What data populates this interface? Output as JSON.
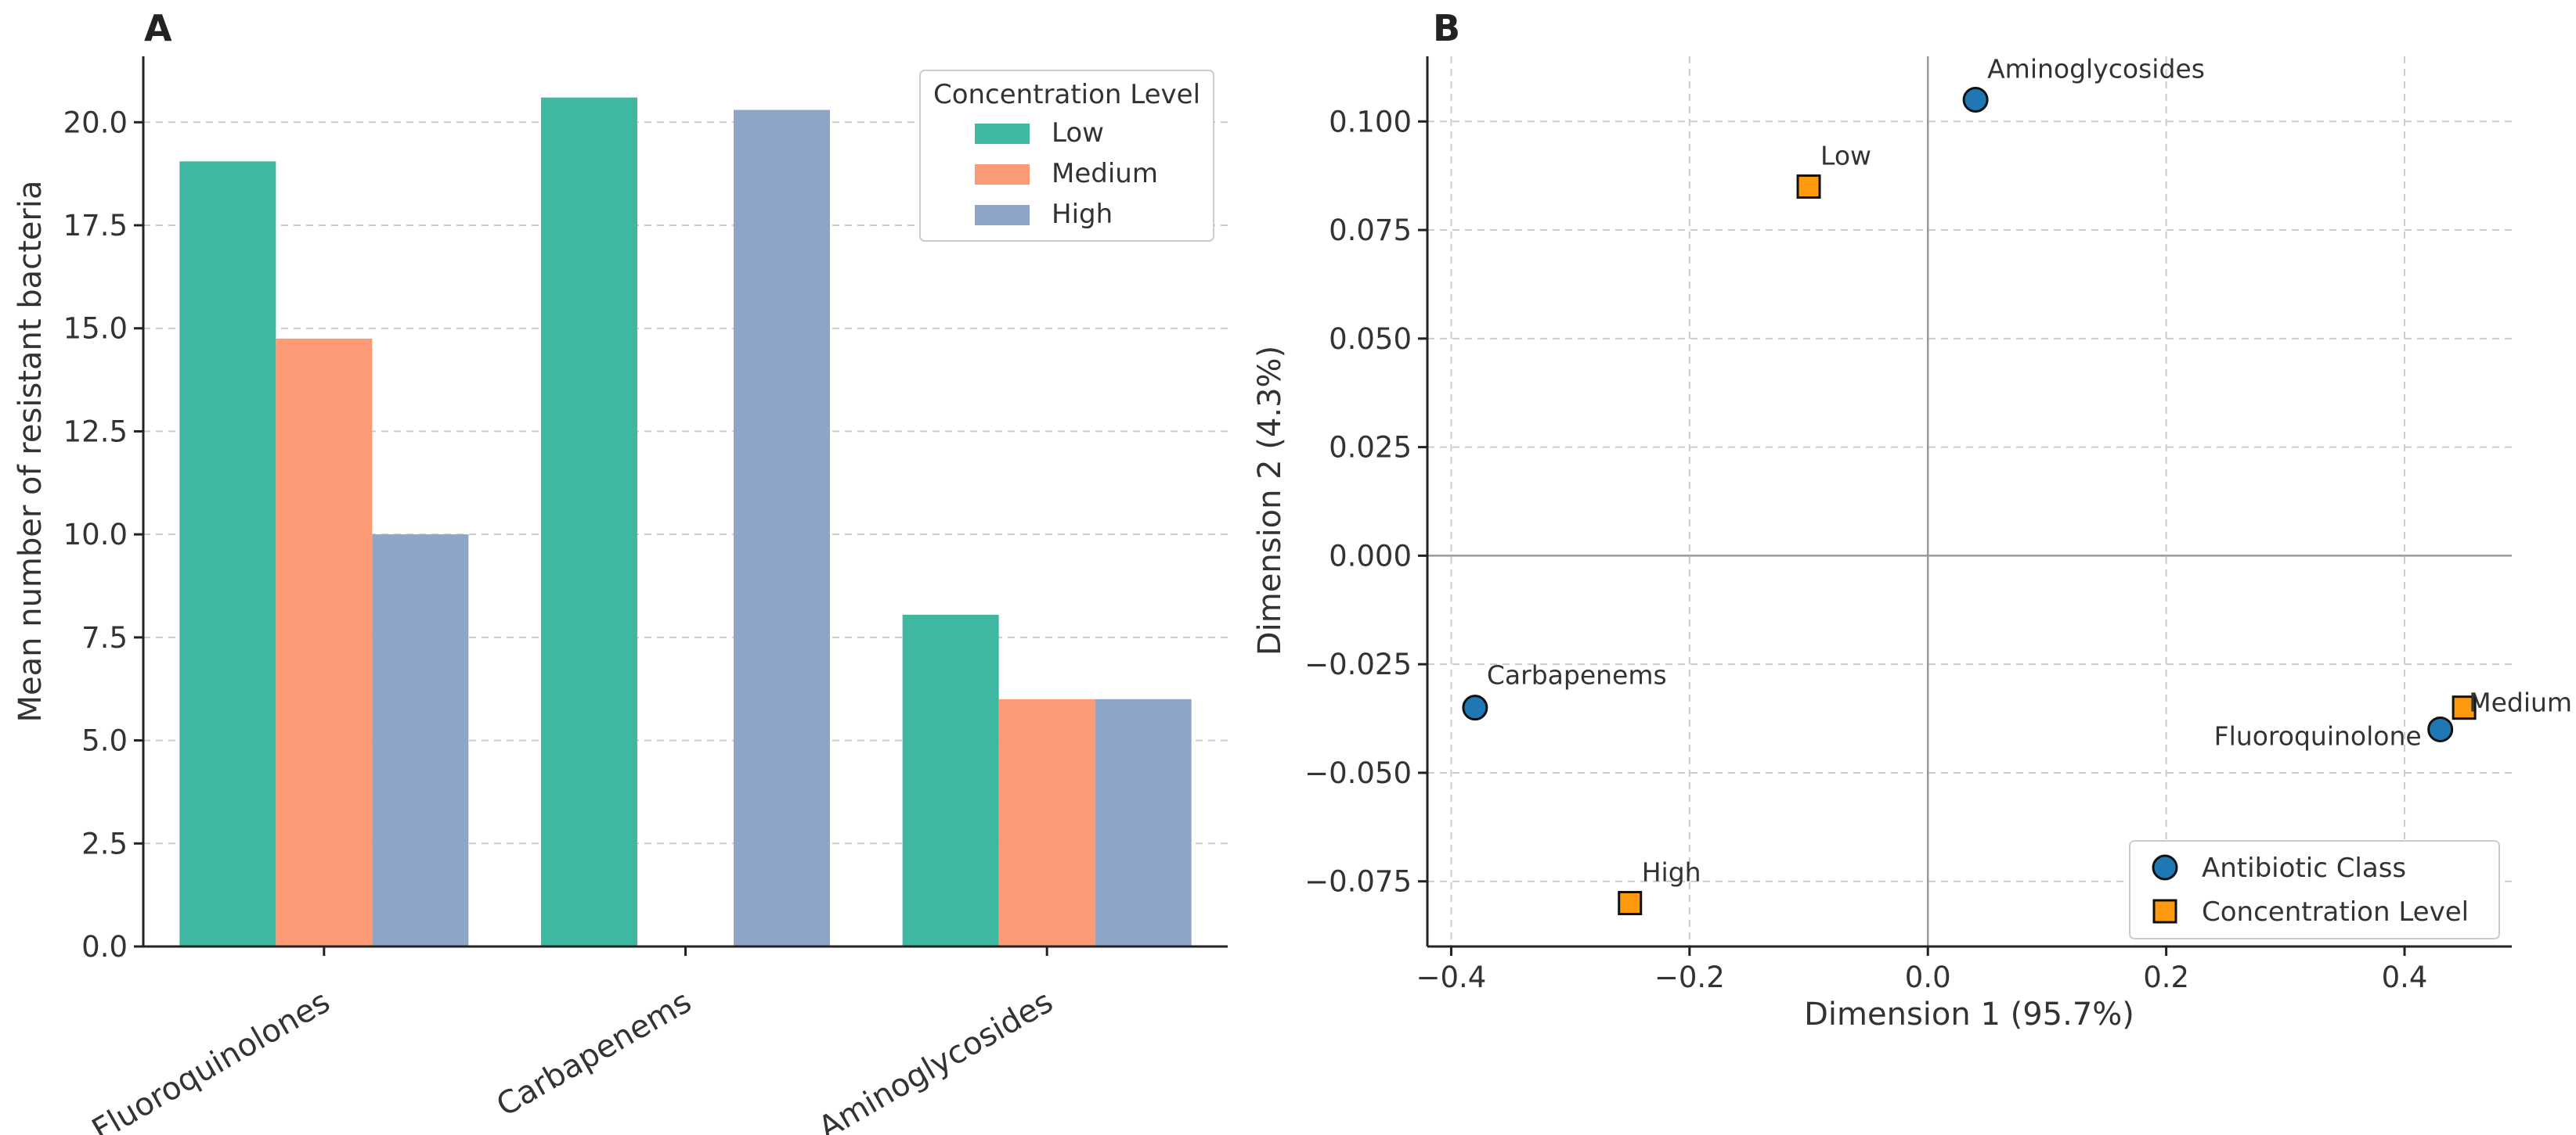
{
  "colors": {
    "low": "#3eb8a0",
    "medium": "#fc9a75",
    "high": "#8fa5c8",
    "antibiotic_point": "#1f77b4",
    "concentration_point": "#ff9a0e"
  },
  "chart_data": [
    {
      "panel": "A",
      "type": "bar",
      "title": "",
      "xlabel": "",
      "ylabel": "Mean number of resistant bacteria",
      "categories": [
        "Fluoroquinolones",
        "Carbapenems",
        "Aminoglycosides"
      ],
      "series": [
        {
          "name": "Low",
          "values": [
            19.05,
            20.6,
            8.05
          ]
        },
        {
          "name": "Medium",
          "values": [
            14.75,
            0,
            6.0
          ]
        },
        {
          "name": "High",
          "values": [
            10.0,
            20.3,
            6.0
          ]
        }
      ],
      "ylim": [
        0,
        21.6
      ],
      "yticks": [
        "0.0",
        "2.5",
        "5.0",
        "7.5",
        "10.0",
        "12.5",
        "15.0",
        "17.5",
        "20.0"
      ],
      "grid": "y",
      "legend": {
        "title": "Concentration Level",
        "position": "top-right"
      }
    },
    {
      "panel": "B",
      "type": "scatter",
      "title": "",
      "xlabel": "Dimension 1 (95.7%)",
      "ylabel": "Dimension 2 (4.3%)",
      "xlim": [
        -0.42,
        0.49
      ],
      "ylim": [
        -0.09,
        0.115
      ],
      "xticks": [
        "−0.4",
        "−0.2",
        "0.0",
        "0.2",
        "0.4"
      ],
      "yticks": [
        "−0.075",
        "−0.050",
        "−0.025",
        "0.000",
        "0.025",
        "0.050",
        "0.075",
        "0.100"
      ],
      "grid": "both",
      "series": [
        {
          "name": "Antibiotic Class",
          "marker": "circle",
          "points": [
            {
              "label": "Aminoglycosides",
              "x": 0.04,
              "y": 0.105
            },
            {
              "label": "Carbapenems",
              "x": -0.38,
              "y": -0.035
            },
            {
              "label": "Fluoroquinolone",
              "x": 0.43,
              "y": -0.04
            }
          ]
        },
        {
          "name": "Concentration Level",
          "marker": "square",
          "points": [
            {
              "label": "Low",
              "x": -0.1,
              "y": 0.085
            },
            {
              "label": "High",
              "x": -0.25,
              "y": -0.08
            },
            {
              "label": "Medium",
              "x": 0.45,
              "y": -0.035
            }
          ]
        }
      ],
      "legend": {
        "position": "bottom-right"
      }
    }
  ]
}
